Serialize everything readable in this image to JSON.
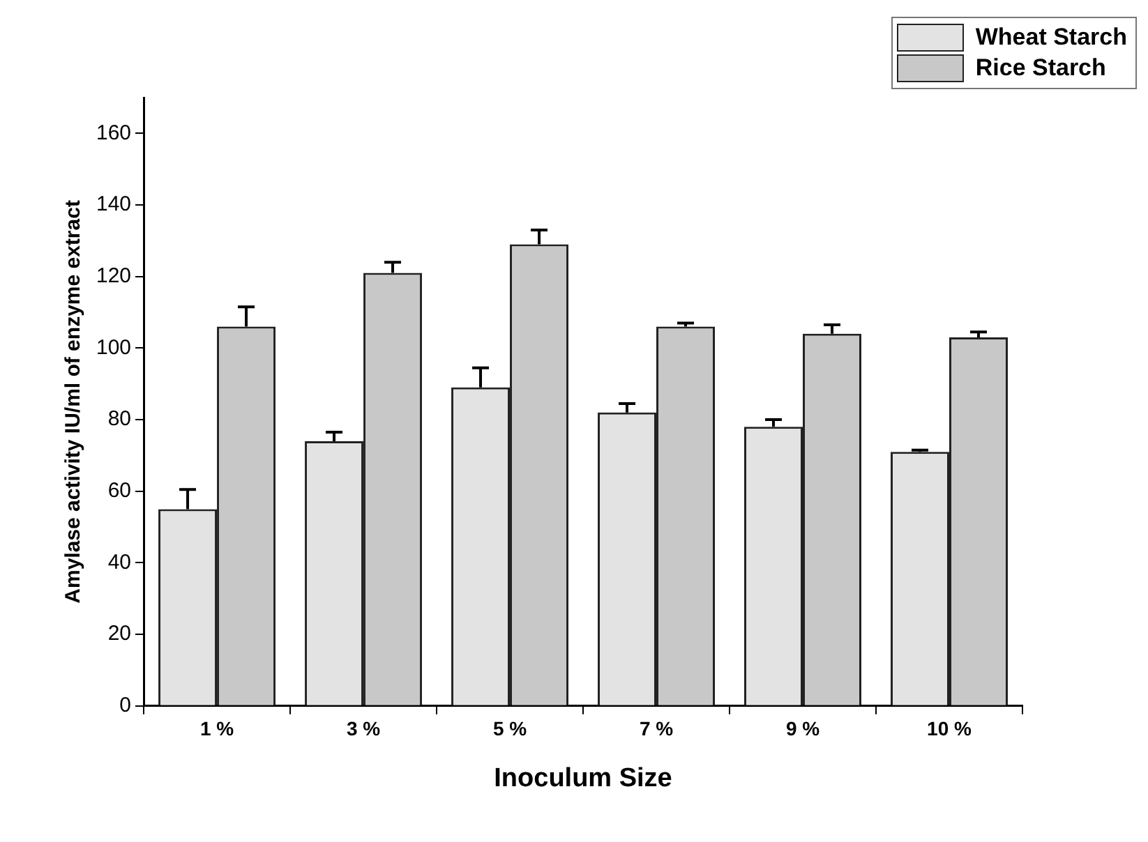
{
  "chart_data": {
    "type": "bar",
    "xlabel": "Inoculum Size",
    "ylabel": "Amylase activity IU/ml of enzyme extract",
    "categories": [
      "1 %",
      "3 %",
      "5 %",
      "7 %",
      "9 %",
      "10 %"
    ],
    "series": [
      {
        "name": "Wheat Starch",
        "color": "#e3e3e3",
        "values": [
          55,
          74,
          89,
          82,
          78,
          71
        ],
        "errors": [
          [
            55,
            60.5
          ],
          [
            74,
            76.5
          ],
          [
            89,
            94.5
          ],
          [
            82,
            84.5
          ],
          [
            78,
            80
          ],
          [
            71,
            71.5
          ]
        ]
      },
      {
        "name": "Rice Starch",
        "color": "#c8c8c8",
        "values": [
          106,
          121,
          129,
          106,
          104,
          103
        ],
        "errors": [
          [
            106,
            111.5
          ],
          [
            121,
            124
          ],
          [
            129,
            133
          ],
          [
            106,
            107
          ],
          [
            104,
            106.5
          ],
          [
            103,
            104.5
          ]
        ]
      }
    ],
    "ylim": [
      0,
      170
    ],
    "yticks": [
      0,
      20,
      40,
      60,
      80,
      100,
      120,
      140,
      160
    ],
    "grid": false,
    "legend": "top right"
  }
}
